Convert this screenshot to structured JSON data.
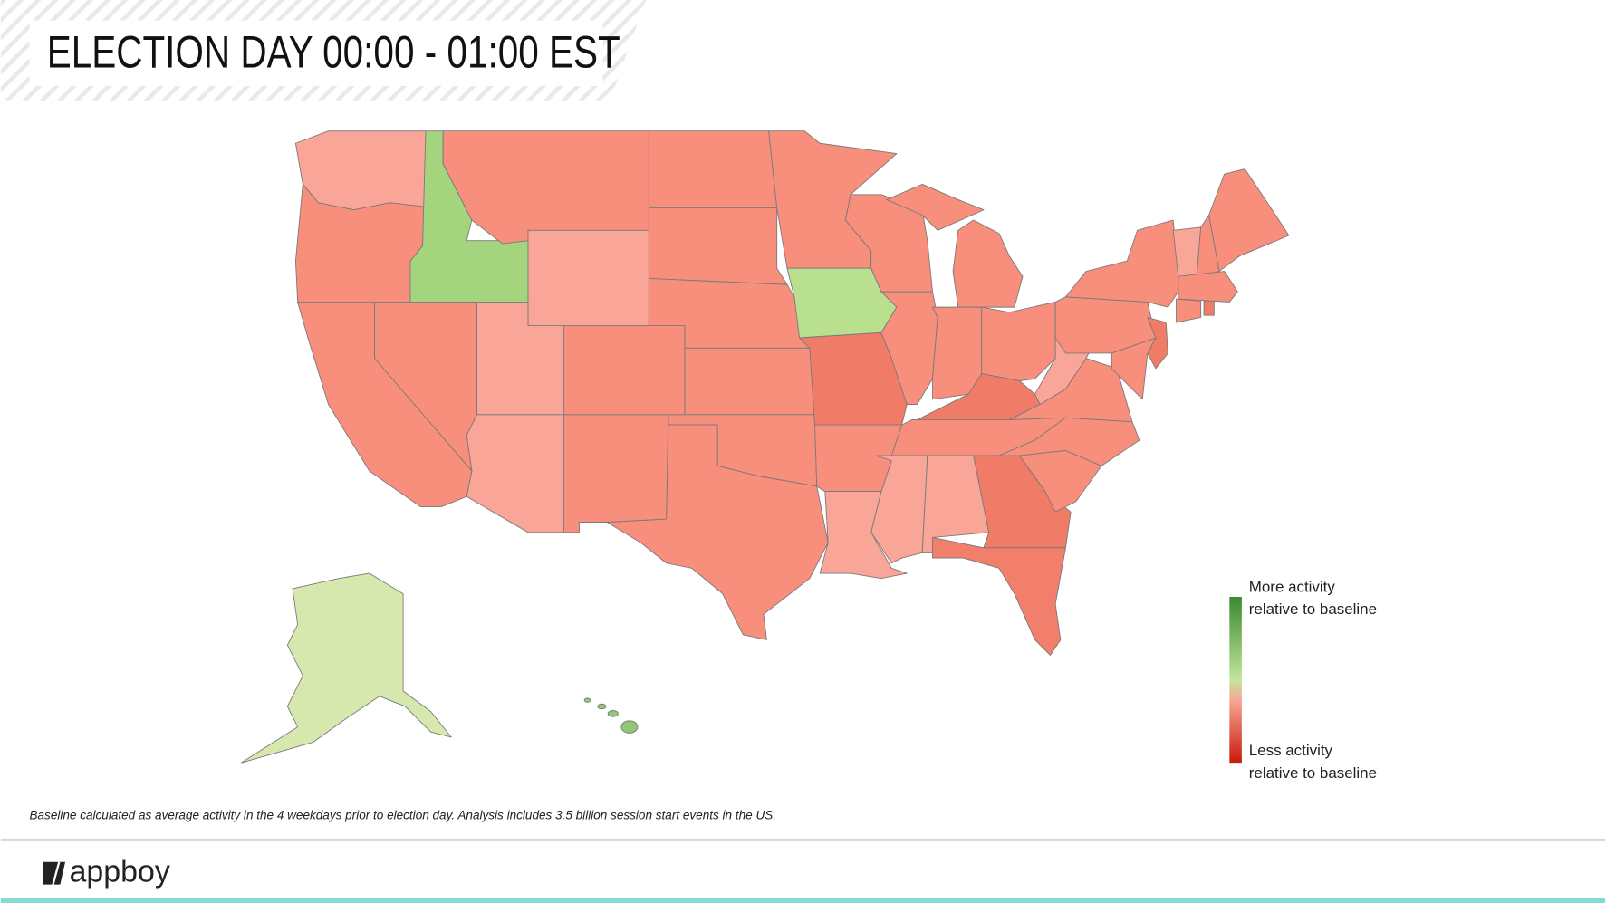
{
  "header": {
    "title": "ELECTION DAY 00:00 - 01:00 EST"
  },
  "legend": {
    "top": [
      "More activity",
      "relative to baseline"
    ],
    "bottom": [
      "Less activity",
      "relative to baseline"
    ]
  },
  "footnote": "Baseline calculated as average activity in the 4 weekdays prior to election day.  Analysis includes 3.5 billion session start events in the US.",
  "footer": {
    "logo": "appboy"
  }
}
